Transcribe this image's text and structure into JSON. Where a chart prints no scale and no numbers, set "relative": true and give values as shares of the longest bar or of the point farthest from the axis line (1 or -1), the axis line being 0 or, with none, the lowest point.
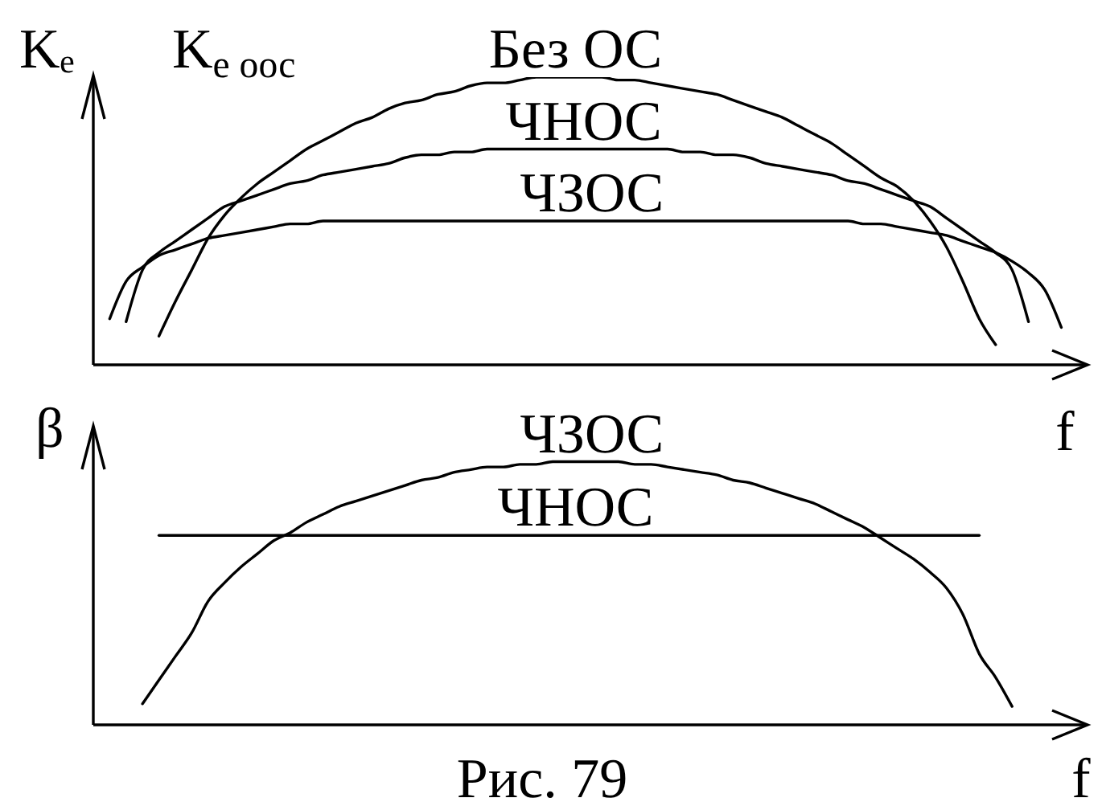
{
  "chart_data": [
    {
      "type": "line",
      "ylabel": "Kₑ",
      "xlabel": "f",
      "annotations": [
        "K$_{e оос}$"
      ],
      "relative": true,
      "marker": "none",
      "categories": [
        null,
        null,
        null,
        null,
        null,
        null,
        null,
        null,
        null,
        null,
        null,
        null,
        null,
        null,
        null,
        null,
        null,
        null,
        null,
        null,
        null,
        null,
        null,
        null,
        null,
        null,
        null,
        null,
        null,
        null,
        null,
        null,
        null,
        null,
        null,
        null,
        null,
        null,
        null,
        null,
        null,
        null,
        null,
        null,
        null,
        null,
        null,
        null,
        null,
        null,
        null,
        null,
        null,
        null,
        null,
        null,
        null,
        null,
        null,
        null,
        null
      ],
      "series": [
        {
          "name": "Без ОС",
          "color": "#000000",
          "values": [
            null,
            null,
            null,
            null,
            0.1,
            0.22,
            0.33,
            0.44,
            0.52,
            0.58,
            0.63,
            0.67,
            0.71,
            0.75,
            0.78,
            0.81,
            0.84,
            0.86,
            0.89,
            0.91,
            0.92,
            0.94,
            0.95,
            0.97,
            0.98,
            0.98,
            0.99,
            1,
            1,
            1,
            1,
            1,
            0.99,
            0.99,
            0.98,
            0.97,
            0.96,
            0.95,
            0.94,
            0.92,
            0.9,
            0.88,
            0.86,
            0.83,
            0.8,
            0.77,
            0.73,
            0.69,
            0.65,
            0.62,
            0.57,
            0.5,
            0.41,
            0.29,
            0.16,
            0.07,
            null,
            null,
            null,
            null,
            null
          ]
        },
        {
          "name": "ЧНОС",
          "color": "#000000",
          "values": [
            null,
            null,
            0.15,
            0.33,
            0.39,
            0.43,
            0.47,
            0.51,
            0.55,
            0.57,
            0.59,
            0.61,
            0.63,
            0.64,
            0.66,
            0.67,
            0.68,
            0.69,
            0.7,
            0.72,
            0.73,
            0.73,
            0.74,
            0.74,
            0.75,
            0.75,
            0.75,
            0.75,
            0.75,
            0.75,
            0.75,
            0.75,
            0.75,
            0.75,
            0.75,
            0.75,
            0.74,
            0.74,
            0.73,
            0.73,
            0.72,
            0.7,
            0.69,
            0.68,
            0.67,
            0.66,
            0.64,
            0.63,
            0.61,
            0.59,
            0.57,
            0.55,
            0.51,
            0.47,
            0.43,
            0.39,
            0.33,
            0.15,
            null,
            null,
            null
          ]
        },
        {
          "name": "ЧЗОС",
          "color": "#000000",
          "values": [
            null,
            0.16,
            0.29,
            0.34,
            0.38,
            0.4,
            0.42,
            0.44,
            0.45,
            0.46,
            0.47,
            0.48,
            0.49,
            0.49,
            0.5,
            0.5,
            0.5,
            0.5,
            0.5,
            0.5,
            0.5,
            0.5,
            0.5,
            0.5,
            0.5,
            0.5,
            0.5,
            0.5,
            0.5,
            0.5,
            0.5,
            0.5,
            0.5,
            0.5,
            0.5,
            0.5,
            0.5,
            0.5,
            0.5,
            0.5,
            0.5,
            0.5,
            0.5,
            0.5,
            0.5,
            0.5,
            0.5,
            0.49,
            0.49,
            0.48,
            0.47,
            0.46,
            0.45,
            0.43,
            0.41,
            0.39,
            0.36,
            0.32,
            0.26,
            0.13,
            null
          ]
        }
      ]
    },
    {
      "type": "line",
      "ylabel": "β",
      "xlabel": "f",
      "annotations": [
        "Рис. 79"
      ],
      "relative": true,
      "marker": "none",
      "categories": [
        null,
        null,
        null,
        null,
        null,
        null,
        null,
        null,
        null,
        null,
        null,
        null,
        null,
        null,
        null,
        null,
        null,
        null,
        null,
        null,
        null,
        null,
        null,
        null,
        null,
        null,
        null,
        null,
        null,
        null,
        null,
        null,
        null,
        null,
        null,
        null,
        null,
        null,
        null,
        null,
        null,
        null,
        null,
        null,
        null,
        null,
        null,
        null,
        null,
        null,
        null,
        null,
        null,
        null,
        null,
        null,
        null,
        null,
        null,
        null,
        null
      ],
      "series": [
        {
          "name": "ЧЗОС",
          "color": "#000000",
          "values": [
            null,
            null,
            null,
            0.08,
            0.17,
            0.26,
            0.35,
            0.47,
            0.54,
            0.6,
            0.65,
            0.7,
            0.73,
            0.77,
            0.8,
            0.83,
            0.85,
            0.87,
            0.89,
            0.91,
            0.93,
            0.94,
            0.96,
            0.97,
            0.98,
            0.98,
            0.99,
            0.99,
            1,
            1,
            1,
            1,
            1,
            0.99,
            0.99,
            0.98,
            0.97,
            0.96,
            0.95,
            0.93,
            0.92,
            0.9,
            0.88,
            0.86,
            0.84,
            0.81,
            0.78,
            0.75,
            0.71,
            0.67,
            0.63,
            0.58,
            0.52,
            0.42,
            0.27,
            0.18,
            0.07,
            null,
            null,
            null,
            null
          ]
        },
        {
          "name": "ЧНОС",
          "color": "#000000",
          "values": [
            null,
            null,
            null,
            null,
            0.72,
            0.72,
            0.72,
            0.72,
            0.72,
            0.72,
            0.72,
            0.72,
            0.72,
            0.72,
            0.72,
            0.72,
            0.72,
            0.72,
            0.72,
            0.72,
            0.72,
            0.72,
            0.72,
            0.72,
            0.72,
            0.72,
            0.72,
            0.72,
            0.72,
            0.72,
            0.72,
            0.72,
            0.72,
            0.72,
            0.72,
            0.72,
            0.72,
            0.72,
            0.72,
            0.72,
            0.72,
            0.72,
            0.72,
            0.72,
            0.72,
            0.72,
            0.72,
            0.72,
            0.72,
            0.72,
            0.72,
            0.72,
            0.72,
            0.72,
            0.72,
            null,
            null,
            null,
            null,
            null,
            null
          ]
        }
      ]
    }
  ]
}
